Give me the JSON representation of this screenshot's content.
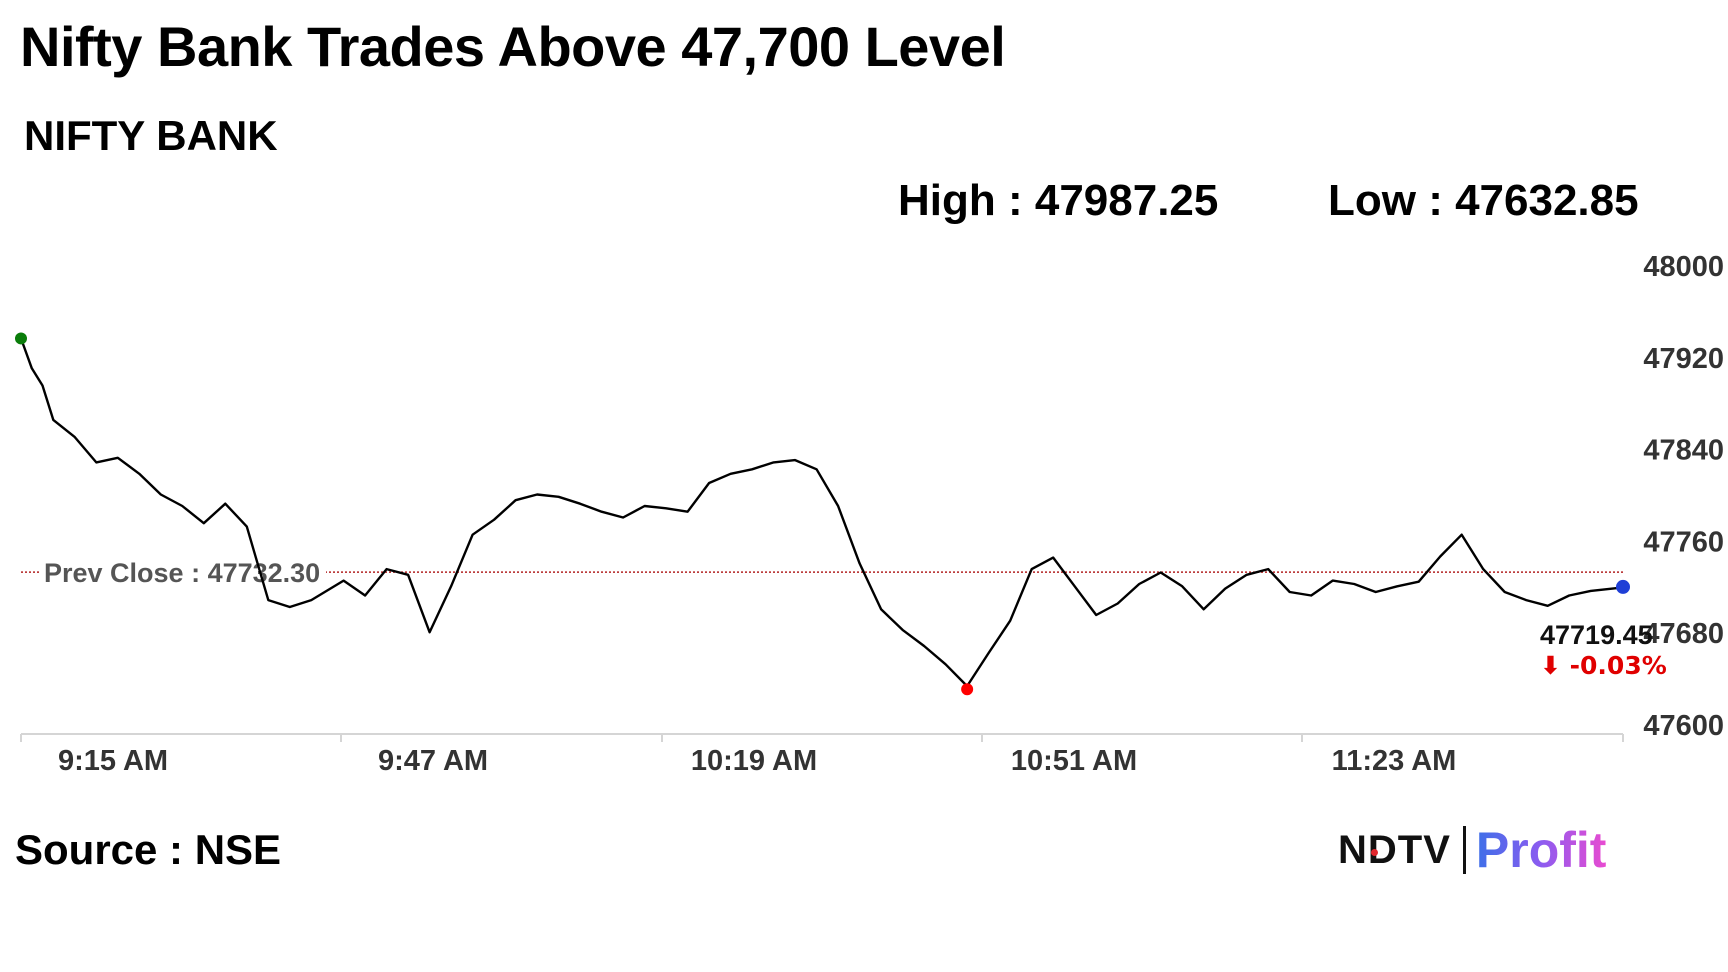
{
  "title": "Nifty Bank Trades Above 47,700 Level",
  "subtitle": "NIFTY BANK",
  "stats": {
    "high": "High : 47987.25",
    "low": "Low : 47632.85"
  },
  "prev_close_label": "Prev Close : 47732.30",
  "last_value_label": "47719.45",
  "change_label": "⬇ -0.03%",
  "source": "Source : NSE",
  "logo": {
    "left": "NDTV",
    "right": "Profit"
  },
  "colors": {
    "line": "#000000",
    "prev_close": "#b22222",
    "start_marker": "#0a7d0a",
    "low_marker": "#ff0000",
    "last_marker": "#1f3fd6",
    "change_down": "#e00000"
  },
  "chart_data": {
    "type": "line",
    "title": "",
    "xlabel": "",
    "ylabel": "",
    "ylim": [
      47600,
      48000
    ],
    "yticks": [
      47600,
      47680,
      47760,
      47840,
      47920,
      48000
    ],
    "x_time_range": [
      "09:15",
      "11:44"
    ],
    "xticks": [
      "9:15 AM",
      "9:47 AM",
      "10:19 AM",
      "10:51 AM",
      "11:23 AM"
    ],
    "prev_close": 47732.3,
    "high": 47987.25,
    "low": 47632.85,
    "last": 47719.45,
    "change_pct": -0.03,
    "series": [
      {
        "x": [
          "09:15",
          "09:16",
          "09:17",
          "09:18",
          "09:20",
          "09:22",
          "09:24",
          "09:26",
          "09:28",
          "09:30",
          "09:32",
          "09:34",
          "09:36",
          "09:38",
          "09:40",
          "09:42",
          "09:45",
          "09:47",
          "09:49",
          "09:51",
          "09:53",
          "09:55",
          "09:57",
          "09:59",
          "10:01",
          "10:03",
          "10:05",
          "10:07",
          "10:09",
          "10:11",
          "10:13",
          "10:15",
          "10:17",
          "10:19",
          "10:21",
          "10:23",
          "10:25",
          "10:27",
          "10:29",
          "10:31",
          "10:33",
          "10:35",
          "10:37",
          "10:39",
          "10:41",
          "10:43",
          "10:45",
          "10:47",
          "10:49",
          "10:51",
          "10:53",
          "10:55",
          "10:57",
          "10:59",
          "11:01",
          "11:03",
          "11:05",
          "11:07",
          "11:09",
          "11:11",
          "11:13",
          "11:15",
          "11:17",
          "11:19",
          "11:21",
          "11:23",
          "11:25",
          "11:27",
          "11:29",
          "11:31",
          "11:33",
          "11:35",
          "11:37",
          "11:39",
          "11:41",
          "11:44"
        ],
        "y": [
          47936,
          47910,
          47895,
          47865,
          47850,
          47828,
          47832,
          47818,
          47800,
          47790,
          47775,
          47792,
          47772,
          47708,
          47702,
          47708,
          47725,
          47712,
          47735,
          47730,
          47680,
          47720,
          47765,
          47778,
          47795,
          47800,
          47798,
          47792,
          47785,
          47780,
          47790,
          47788,
          47785,
          47810,
          47818,
          47822,
          47828,
          47830,
          47822,
          47790,
          47740,
          47700,
          47682,
          47668,
          47652,
          47633,
          47662,
          47690,
          47735,
          47745,
          47720,
          47695,
          47705,
          47722,
          47732,
          47720,
          47700,
          47718,
          47730,
          47735,
          47715,
          47712,
          47725,
          47722,
          47715,
          47720,
          47724,
          47746,
          47765,
          47735,
          47715,
          47708,
          47703,
          47712,
          47716,
          47719
        ]
      }
    ]
  }
}
